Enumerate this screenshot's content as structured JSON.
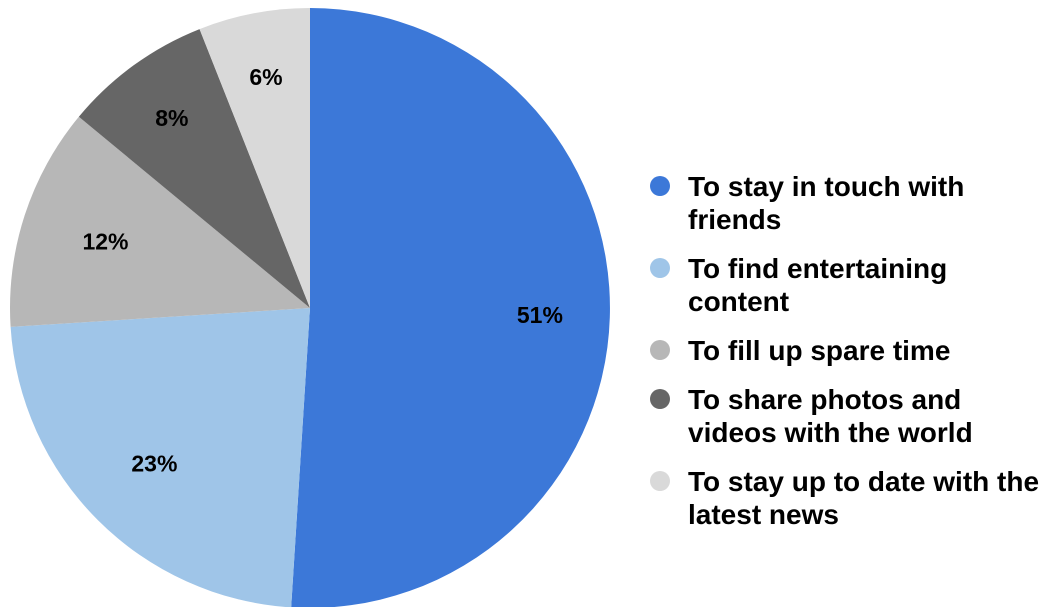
{
  "chart_data": {
    "type": "pie",
    "title": "",
    "slices": [
      {
        "label": "To stay in touch with friends",
        "value": 51,
        "value_label": "51%",
        "color": "#3c78d8"
      },
      {
        "label": "To find entertaining content",
        "value": 23,
        "value_label": "23%",
        "color": "#9fc5e8"
      },
      {
        "label": "To fill up spare time",
        "value": 12,
        "value_label": "12%",
        "color": "#b7b7b7"
      },
      {
        "label": "To share photos and videos with the world",
        "value": 8,
        "value_label": "8%",
        "color": "#666666"
      },
      {
        "label": "To stay up to date with the latest news",
        "value": 6,
        "value_label": "6%",
        "color": "#d9d9d9"
      }
    ],
    "legend_position": "right",
    "start_angle": "12 o'clock",
    "direction": "clockwise"
  },
  "legend": {
    "items": [
      {
        "label_line1": "To stay in touch with",
        "label_line2": "friends"
      },
      {
        "label_line1": "To find entertaining",
        "label_line2": "content"
      },
      {
        "label_line1": "To fill up spare time",
        "label_line2": ""
      },
      {
        "label_line1": "To share photos and",
        "label_line2": "videos with the world"
      },
      {
        "label_line1": "To stay up to date with the",
        "label_line2": "latest news"
      }
    ]
  }
}
